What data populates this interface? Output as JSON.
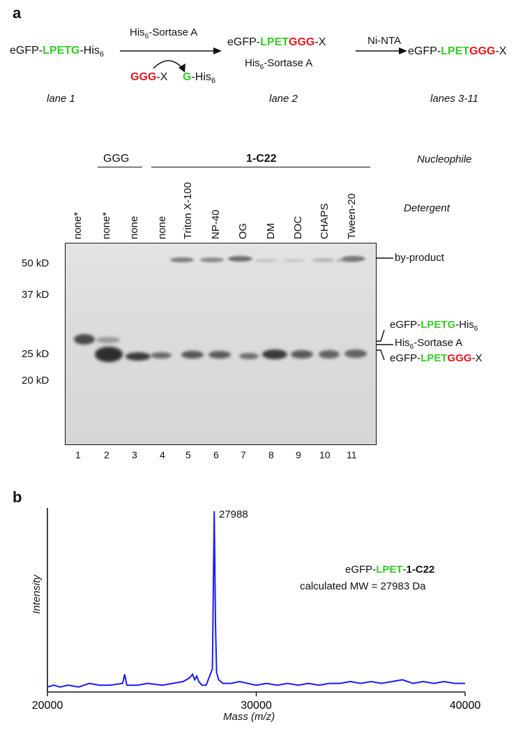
{
  "panel_a": {
    "letter": "a",
    "scheme": {
      "reactant": {
        "pre": "eGFP-",
        "green": "LPETG",
        "post": "-His",
        "sub": "6"
      },
      "arrow1_top": {
        "pre": "His",
        "sub": "6",
        "post": "-Sortase A"
      },
      "nucleophile": {
        "red": "GGG",
        "post": "-X"
      },
      "leaving": {
        "green": "G",
        "post": "-His",
        "sub": "6"
      },
      "product1": {
        "pre": "eGFP-",
        "green": "LPET",
        "red": "GGG",
        "post": "-X"
      },
      "product1_b": {
        "pre": "His",
        "sub": "6",
        "post": "-Sortase A"
      },
      "arrow2_top": "Ni-NTA",
      "product2": {
        "pre": "eGFP-",
        "green": "LPET",
        "red": "GGG",
        "post": "-X"
      },
      "lane_label_1": "lane 1",
      "lane_label_2": "lane 2",
      "lane_label_3": "lanes 3-11"
    },
    "gel": {
      "group_labels": {
        "ggg": "GGG",
        "c22": "1-C22"
      },
      "nucleophile_header": "Nucleophile",
      "detergent_header": "Detergent",
      "detergents": [
        "none*",
        "none*",
        "none",
        "none",
        "Triton X-100",
        "NP-40",
        "OG",
        "DM",
        "DOC",
        "CHAPS",
        "Tween-20"
      ],
      "lane_numbers": [
        "1",
        "2",
        "3",
        "4",
        "5",
        "6",
        "7",
        "8",
        "9",
        "10",
        "11"
      ],
      "mw_markers": [
        "50 kD",
        "37 kD",
        "25 kD",
        "20 kD"
      ],
      "right_labels": {
        "byproduct": "by-product",
        "reactant": {
          "pre": "eGFP-",
          "green": "LPETG",
          "post": "-His",
          "sub": "6"
        },
        "sortase": {
          "pre": "His",
          "sub": "6",
          "post": "-Sortase A"
        },
        "product": {
          "pre": "eGFP-",
          "green": "LPET",
          "red": "GGG",
          "post": "-X"
        }
      }
    }
  },
  "panel_b": {
    "letter": "b",
    "chart_data": {
      "type": "line",
      "x_tick_labels": [
        "20000",
        "30000",
        "40000"
      ],
      "xlabel": "Mass (m/z)",
      "ylabel": "Intensity",
      "xlim": [
        20000,
        40000
      ],
      "peak_label": "27988",
      "annotation_line1": {
        "pre": "eGFP-",
        "green": "LPET",
        "post": "-",
        "bold": "1-C22"
      },
      "annotation_line2": "calculated MW = 27983 Da",
      "series": [
        {
          "color": "#1a1aff",
          "points": [
            [
              20000,
              0.02
            ],
            [
              20300,
              0.03
            ],
            [
              20600,
              0.02
            ],
            [
              21000,
              0.03
            ],
            [
              21500,
              0.02
            ],
            [
              22000,
              0.04
            ],
            [
              22500,
              0.03
            ],
            [
              23000,
              0.03
            ],
            [
              23600,
              0.04
            ],
            [
              23700,
              0.09
            ],
            [
              23800,
              0.03
            ],
            [
              24300,
              0.03
            ],
            [
              24800,
              0.04
            ],
            [
              25500,
              0.03
            ],
            [
              26000,
              0.04
            ],
            [
              26500,
              0.05
            ],
            [
              26800,
              0.07
            ],
            [
              26950,
              0.09
            ],
            [
              27050,
              0.06
            ],
            [
              27150,
              0.08
            ],
            [
              27250,
              0.05
            ],
            [
              27400,
              0.03
            ],
            [
              27600,
              0.03
            ],
            [
              27800,
              0.09
            ],
            [
              27900,
              0.12
            ],
            [
              27988,
              0.99
            ],
            [
              28050,
              0.35
            ],
            [
              28100,
              0.1
            ],
            [
              28200,
              0.06
            ],
            [
              28400,
              0.04
            ],
            [
              28800,
              0.04
            ],
            [
              29200,
              0.05
            ],
            [
              29600,
              0.04
            ],
            [
              30000,
              0.03
            ],
            [
              30500,
              0.04
            ],
            [
              31000,
              0.03
            ],
            [
              31500,
              0.04
            ],
            [
              32000,
              0.03
            ],
            [
              32500,
              0.04
            ],
            [
              33000,
              0.03
            ],
            [
              33500,
              0.04
            ],
            [
              34000,
              0.04
            ],
            [
              34500,
              0.05
            ],
            [
              35000,
              0.04
            ],
            [
              35500,
              0.05
            ],
            [
              36000,
              0.04
            ],
            [
              36500,
              0.05
            ],
            [
              37000,
              0.06
            ],
            [
              37500,
              0.04
            ],
            [
              38000,
              0.05
            ],
            [
              38500,
              0.04
            ],
            [
              39000,
              0.05
            ],
            [
              39500,
              0.04
            ],
            [
              40000,
              0.04
            ]
          ]
        }
      ]
    }
  }
}
